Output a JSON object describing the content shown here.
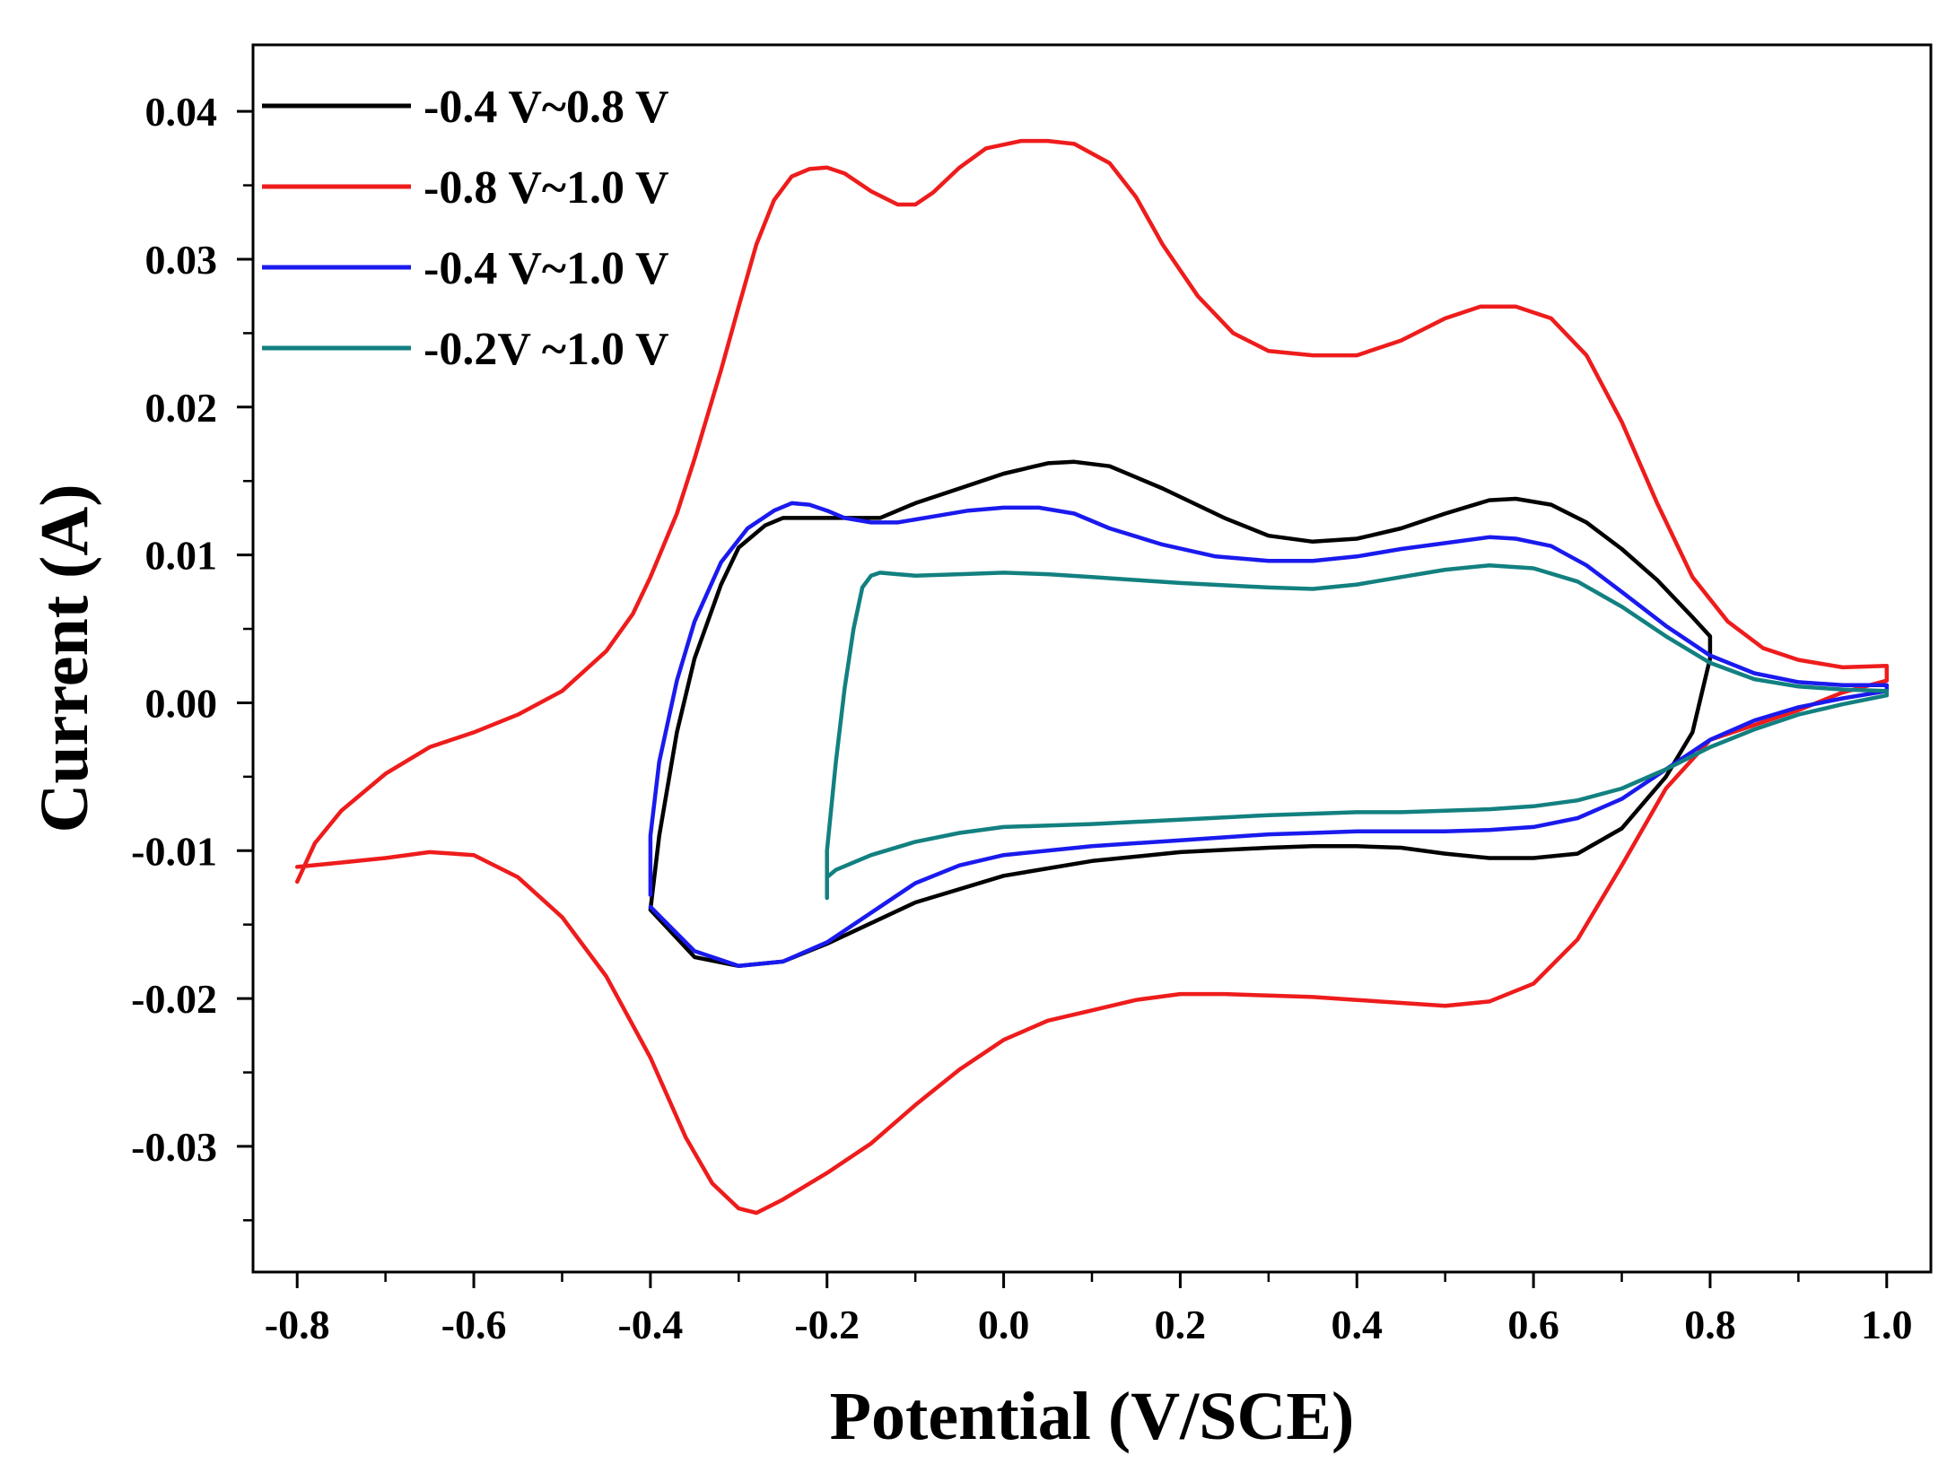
{
  "chart_data": {
    "type": "line",
    "title": "",
    "xlabel": "Potential (V/SCE)",
    "ylabel": "Current (A)",
    "xlim": [
      -0.85,
      1.05
    ],
    "ylim": [
      -0.0385,
      0.0445
    ],
    "grid": false,
    "legend_position": "top-left",
    "x_ticks": [
      -0.8,
      -0.6,
      -0.4,
      -0.2,
      0.0,
      0.2,
      0.4,
      0.6,
      0.8,
      1.0
    ],
    "x_tick_labels": [
      "-0.8",
      "-0.6",
      "-0.4",
      "-0.2",
      "0.0",
      "0.2",
      "0.4",
      "0.6",
      "0.8",
      "1.0"
    ],
    "y_ticks": [
      -0.03,
      -0.02,
      -0.01,
      0.0,
      0.01,
      0.02,
      0.03,
      0.04
    ],
    "y_tick_labels": [
      "-0.03",
      "-0.02",
      "-0.01",
      "0.00",
      "0.01",
      "0.02",
      "0.03",
      "0.04"
    ],
    "series": [
      {
        "name": "-0.4 V~0.8 V",
        "color": "#000000",
        "x": [
          -0.4,
          -0.39,
          -0.37,
          -0.35,
          -0.32,
          -0.3,
          -0.27,
          -0.25,
          -0.22,
          -0.2,
          -0.17,
          -0.14,
          -0.1,
          -0.05,
          0.0,
          0.05,
          0.08,
          0.12,
          0.18,
          0.25,
          0.3,
          0.35,
          0.4,
          0.45,
          0.5,
          0.55,
          0.58,
          0.62,
          0.66,
          0.7,
          0.74,
          0.78,
          0.8,
          0.8,
          0.79,
          0.78,
          0.75,
          0.7,
          0.65,
          0.6,
          0.55,
          0.5,
          0.45,
          0.4,
          0.35,
          0.3,
          0.2,
          0.1,
          0.0,
          -0.1,
          -0.2,
          -0.25,
          -0.3,
          -0.35,
          -0.4
        ],
        "y": [
          -0.014,
          -0.009,
          -0.002,
          0.003,
          0.008,
          0.0105,
          0.012,
          0.0125,
          0.0125,
          0.0125,
          0.0125,
          0.0125,
          0.0135,
          0.0145,
          0.0155,
          0.0162,
          0.0163,
          0.016,
          0.0145,
          0.0125,
          0.0113,
          0.0109,
          0.0111,
          0.0118,
          0.0128,
          0.0137,
          0.0138,
          0.0134,
          0.0122,
          0.0104,
          0.0083,
          0.0058,
          0.0045,
          0.003,
          0.0005,
          -0.002,
          -0.005,
          -0.0085,
          -0.0102,
          -0.0105,
          -0.0105,
          -0.0102,
          -0.0098,
          -0.0097,
          -0.0097,
          -0.0098,
          -0.0101,
          -0.0107,
          -0.0117,
          -0.0135,
          -0.0163,
          -0.0175,
          -0.0178,
          -0.0172,
          -0.014
        ]
      },
      {
        "name": "-0.8 V~1.0 V",
        "color": "#ee1c1c",
        "x": [
          -0.8,
          -0.78,
          -0.75,
          -0.7,
          -0.65,
          -0.6,
          -0.55,
          -0.5,
          -0.45,
          -0.42,
          -0.4,
          -0.37,
          -0.35,
          -0.32,
          -0.3,
          -0.28,
          -0.26,
          -0.24,
          -0.22,
          -0.2,
          -0.18,
          -0.15,
          -0.12,
          -0.1,
          -0.08,
          -0.05,
          -0.02,
          0.02,
          0.05,
          0.08,
          0.12,
          0.15,
          0.18,
          0.22,
          0.26,
          0.3,
          0.35,
          0.4,
          0.45,
          0.5,
          0.54,
          0.58,
          0.62,
          0.66,
          0.7,
          0.74,
          0.78,
          0.82,
          0.86,
          0.9,
          0.95,
          1.0,
          1.0,
          0.95,
          0.9,
          0.85,
          0.8,
          0.75,
          0.7,
          0.65,
          0.6,
          0.55,
          0.5,
          0.45,
          0.4,
          0.35,
          0.3,
          0.25,
          0.2,
          0.15,
          0.1,
          0.05,
          0.0,
          -0.05,
          -0.1,
          -0.15,
          -0.2,
          -0.25,
          -0.28,
          -0.3,
          -0.33,
          -0.36,
          -0.4,
          -0.45,
          -0.5,
          -0.55,
          -0.6,
          -0.65,
          -0.7,
          -0.75,
          -0.8
        ],
        "y": [
          -0.0121,
          -0.0095,
          -0.0073,
          -0.0048,
          -0.003,
          -0.002,
          -0.0008,
          0.0008,
          0.0035,
          0.006,
          0.0085,
          0.0128,
          0.0165,
          0.0225,
          0.0268,
          0.031,
          0.034,
          0.0356,
          0.0361,
          0.0362,
          0.0358,
          0.0346,
          0.0337,
          0.0337,
          0.0345,
          0.0362,
          0.0375,
          0.038,
          0.038,
          0.0378,
          0.0365,
          0.0342,
          0.031,
          0.0275,
          0.025,
          0.0238,
          0.0235,
          0.0235,
          0.0245,
          0.026,
          0.0268,
          0.0268,
          0.026,
          0.0235,
          0.019,
          0.0135,
          0.0085,
          0.0055,
          0.0037,
          0.0029,
          0.0024,
          0.0025,
          0.0015,
          0.0007,
          -0.0005,
          -0.0015,
          -0.0025,
          -0.0058,
          -0.011,
          -0.016,
          -0.019,
          -0.0202,
          -0.0205,
          -0.0203,
          -0.0201,
          -0.0199,
          -0.0198,
          -0.0197,
          -0.0197,
          -0.0201,
          -0.0208,
          -0.0215,
          -0.0228,
          -0.0248,
          -0.0272,
          -0.0298,
          -0.0318,
          -0.0336,
          -0.0345,
          -0.0342,
          -0.0325,
          -0.0294,
          -0.024,
          -0.0185,
          -0.0145,
          -0.0118,
          -0.0103,
          -0.0101,
          -0.0105,
          -0.0108,
          -0.0111
        ]
      },
      {
        "name": "-0.4 V~1.0 V",
        "color": "#1a1aee",
        "x": [
          -0.4,
          -0.4,
          -0.39,
          -0.37,
          -0.35,
          -0.32,
          -0.29,
          -0.26,
          -0.24,
          -0.22,
          -0.2,
          -0.18,
          -0.15,
          -0.12,
          -0.08,
          -0.04,
          0.0,
          0.04,
          0.08,
          0.12,
          0.18,
          0.24,
          0.3,
          0.35,
          0.4,
          0.45,
          0.5,
          0.55,
          0.58,
          0.62,
          0.66,
          0.7,
          0.75,
          0.8,
          0.85,
          0.9,
          0.95,
          1.0,
          1.0,
          0.95,
          0.9,
          0.85,
          0.8,
          0.75,
          0.7,
          0.65,
          0.6,
          0.55,
          0.5,
          0.45,
          0.4,
          0.35,
          0.3,
          0.2,
          0.1,
          0.0,
          -0.05,
          -0.1,
          -0.15,
          -0.2,
          -0.25,
          -0.3,
          -0.35,
          -0.4
        ],
        "y": [
          -0.013,
          -0.009,
          -0.004,
          0.0015,
          0.0055,
          0.0095,
          0.0118,
          0.013,
          0.0135,
          0.0134,
          0.013,
          0.0125,
          0.0122,
          0.0122,
          0.0126,
          0.013,
          0.0132,
          0.0132,
          0.0128,
          0.0118,
          0.0107,
          0.0099,
          0.0096,
          0.0096,
          0.0099,
          0.0104,
          0.0108,
          0.0112,
          0.0111,
          0.0106,
          0.0093,
          0.0075,
          0.0052,
          0.0032,
          0.002,
          0.0014,
          0.0012,
          0.0012,
          0.0008,
          0.0003,
          -0.0003,
          -0.0012,
          -0.0025,
          -0.0045,
          -0.0065,
          -0.0078,
          -0.0084,
          -0.0086,
          -0.0087,
          -0.0087,
          -0.0087,
          -0.0088,
          -0.0089,
          -0.0093,
          -0.0097,
          -0.0103,
          -0.011,
          -0.0122,
          -0.0142,
          -0.0162,
          -0.0175,
          -0.0178,
          -0.0168,
          -0.0138
        ]
      },
      {
        "name": "-0.2V ~1.0 V",
        "color": "#138080",
        "x": [
          -0.2,
          -0.2,
          -0.19,
          -0.18,
          -0.17,
          -0.16,
          -0.15,
          -0.14,
          -0.12,
          -0.1,
          -0.05,
          0.0,
          0.05,
          0.1,
          0.15,
          0.2,
          0.3,
          0.35,
          0.4,
          0.45,
          0.5,
          0.55,
          0.6,
          0.65,
          0.7,
          0.75,
          0.8,
          0.85,
          0.9,
          0.95,
          1.0,
          1.0,
          0.95,
          0.9,
          0.85,
          0.8,
          0.75,
          0.7,
          0.65,
          0.6,
          0.55,
          0.5,
          0.45,
          0.4,
          0.3,
          0.2,
          0.1,
          0.0,
          -0.05,
          -0.1,
          -0.15,
          -0.19,
          -0.2
        ],
        "y": [
          -0.0132,
          -0.01,
          -0.004,
          0.001,
          0.005,
          0.0078,
          0.0086,
          0.0088,
          0.0087,
          0.0086,
          0.0087,
          0.0088,
          0.0087,
          0.0085,
          0.0083,
          0.0081,
          0.0078,
          0.0077,
          0.008,
          0.0085,
          0.009,
          0.0093,
          0.0091,
          0.0082,
          0.0065,
          0.0045,
          0.0027,
          0.0016,
          0.0011,
          0.0009,
          0.0008,
          0.0005,
          -0.0001,
          -0.0008,
          -0.0018,
          -0.003,
          -0.0045,
          -0.0058,
          -0.0066,
          -0.007,
          -0.0072,
          -0.0073,
          -0.0074,
          -0.0074,
          -0.0076,
          -0.0079,
          -0.0082,
          -0.0084,
          -0.0088,
          -0.0094,
          -0.0103,
          -0.0113,
          -0.0118
        ]
      }
    ]
  }
}
